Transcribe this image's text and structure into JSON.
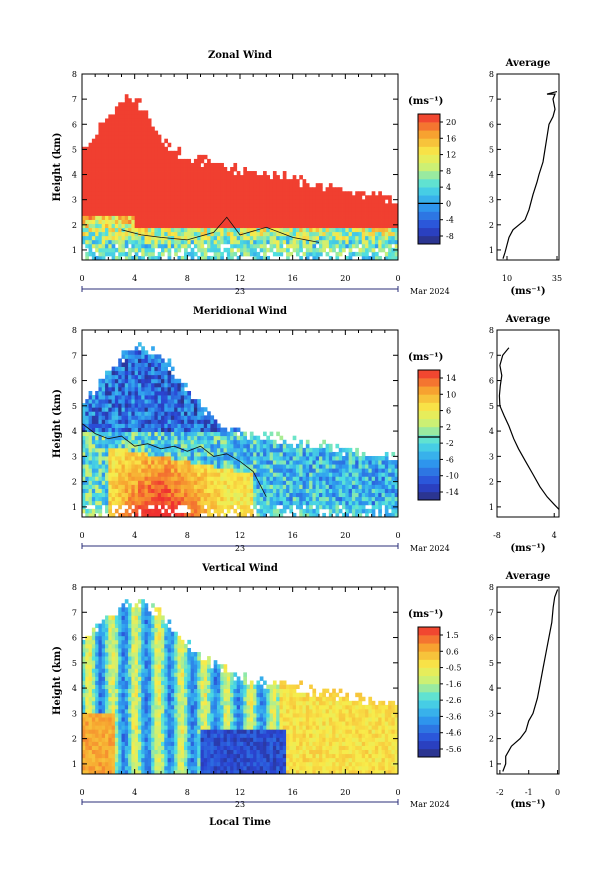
{
  "chart_data": [
    {
      "type": "heatmap",
      "title": "Zonal Wind",
      "xlabel": "",
      "ylabel": "Height (km)",
      "xlim": [
        0,
        24
      ],
      "ylim": [
        0.6,
        8
      ],
      "xticks": [
        "0",
        "4",
        "8",
        "12",
        "16",
        "20",
        "0"
      ],
      "yticks": [
        "1",
        "2",
        "3",
        "4",
        "5",
        "6",
        "7",
        "8"
      ],
      "date_day": "23",
      "date_month": "Mar 2024",
      "colorbar": {
        "unit": "(ms⁻¹)",
        "labels": [
          "20",
          "16",
          "12",
          "8",
          "4",
          "0",
          "-4",
          "-8"
        ],
        "range": [
          -10,
          22
        ],
        "contour_level": 0
      },
      "profile": {
        "title": "Average",
        "xlabel": "(ms⁻¹)",
        "xticks": [
          "10",
          "35"
        ],
        "xlim": [
          5,
          36
        ],
        "points": [
          [
            8,
            0.65
          ],
          [
            9,
            0.9
          ],
          [
            10,
            1.2
          ],
          [
            11,
            1.5
          ],
          [
            13,
            1.8
          ],
          [
            16,
            2.0
          ],
          [
            19,
            2.2
          ],
          [
            21,
            2.6
          ],
          [
            23,
            3.2
          ],
          [
            25,
            3.7
          ],
          [
            26,
            4.0
          ],
          [
            28,
            4.5
          ],
          [
            29,
            5.0
          ],
          [
            30,
            5.5
          ],
          [
            31,
            6.0
          ],
          [
            33,
            6.3
          ],
          [
            34,
            6.6
          ],
          [
            33,
            7.0
          ],
          [
            34,
            7.2
          ],
          [
            30,
            7.2
          ],
          [
            35,
            7.3
          ]
        ]
      }
    },
    {
      "type": "heatmap",
      "title": "Meridional Wind",
      "xlabel": "",
      "ylabel": "Height (km)",
      "xlim": [
        0,
        24
      ],
      "ylim": [
        0.6,
        8
      ],
      "xticks": [
        "0",
        "4",
        "8",
        "12",
        "16",
        "20",
        "0"
      ],
      "yticks": [
        "1",
        "2",
        "3",
        "4",
        "5",
        "6",
        "7",
        "8"
      ],
      "date_day": "23",
      "date_month": "Mar 2024",
      "colorbar": {
        "unit": "(ms⁻¹)",
        "labels": [
          "14",
          "10",
          "6",
          "2",
          "-2",
          "-6",
          "-10",
          "-14"
        ],
        "range": [
          -16,
          17
        ],
        "contour_level": 0
      },
      "profile": {
        "title": "Average",
        "xlabel": "(ms⁻¹)",
        "xticks": [
          "-8",
          "4"
        ],
        "xlim": [
          -8,
          5
        ],
        "points": [
          [
            5,
            0.9
          ],
          [
            4,
            1.1
          ],
          [
            2.5,
            1.4
          ],
          [
            1,
            1.8
          ],
          [
            -0.5,
            2.3
          ],
          [
            -2,
            2.8
          ],
          [
            -3.5,
            3.3
          ],
          [
            -4.5,
            3.7
          ],
          [
            -5.5,
            4.2
          ],
          [
            -6.5,
            4.6
          ],
          [
            -7.4,
            5.0
          ],
          [
            -7.5,
            5.4
          ],
          [
            -7.3,
            5.8
          ],
          [
            -7.0,
            6.2
          ],
          [
            -7.4,
            6.6
          ],
          [
            -6.8,
            7.0
          ],
          [
            -5.5,
            7.3
          ]
        ]
      }
    },
    {
      "type": "heatmap",
      "title": "Vertical Wind",
      "xlabel": "Local Time",
      "ylabel": "Height (km)",
      "xlim": [
        0,
        24
      ],
      "ylim": [
        0.6,
        8
      ],
      "xticks": [
        "0",
        "4",
        "8",
        "12",
        "16",
        "20",
        "0"
      ],
      "yticks": [
        "1",
        "2",
        "3",
        "4",
        "5",
        "6",
        "7",
        "8"
      ],
      "date_day": "23",
      "date_month": "Mar 2024",
      "colorbar": {
        "unit": "(ms⁻¹)",
        "labels": [
          "1.5",
          "0.6",
          "-0.5",
          "-1.6",
          "-2.6",
          "-3.6",
          "-4.6",
          "-5.6"
        ],
        "range": [
          -6.1,
          2.1
        ]
      },
      "profile": {
        "title": "Average",
        "xlabel": "(ms⁻¹)",
        "xticks": [
          "-2",
          "-1",
          "0"
        ],
        "xlim": [
          -2.1,
          0.05
        ],
        "points": [
          [
            -1.9,
            0.7
          ],
          [
            -1.8,
            1.0
          ],
          [
            -1.8,
            1.3
          ],
          [
            -1.6,
            1.7
          ],
          [
            -1.3,
            2.0
          ],
          [
            -1.1,
            2.3
          ],
          [
            -1.0,
            2.7
          ],
          [
            -0.85,
            3.0
          ],
          [
            -0.7,
            3.6
          ],
          [
            -0.6,
            4.2
          ],
          [
            -0.5,
            4.8
          ],
          [
            -0.4,
            5.4
          ],
          [
            -0.3,
            6.0
          ],
          [
            -0.2,
            6.6
          ],
          [
            -0.15,
            7.2
          ],
          [
            -0.1,
            7.6
          ],
          [
            0.0,
            7.9
          ]
        ]
      }
    }
  ]
}
